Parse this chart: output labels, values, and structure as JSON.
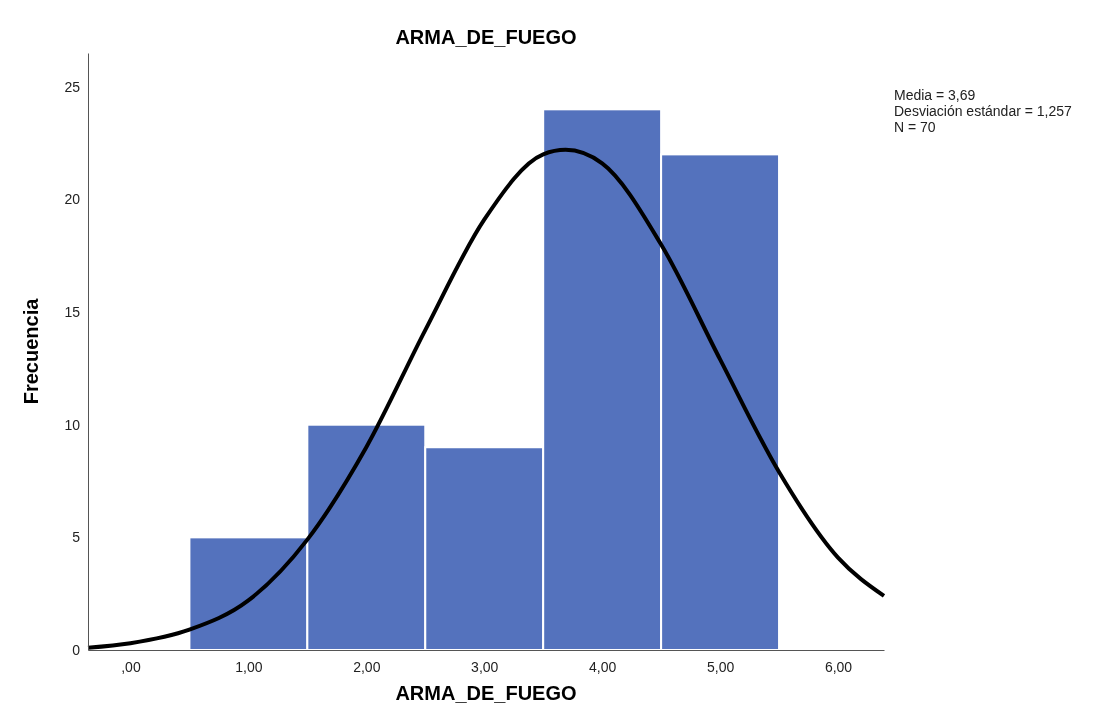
{
  "chart_data": {
    "type": "histogram",
    "title": "ARMA_DE_FUEGO",
    "xlabel": "ARMA_DE_FUEGO",
    "ylabel": "Frecuencia",
    "bins": [
      0.5,
      1.5,
      2.5,
      3.5,
      4.5,
      5.5
    ],
    "values": [
      5,
      10,
      9,
      24,
      22
    ],
    "color": "#5472bd",
    "xlim": [
      -0.36,
      6.39
    ],
    "xticks": [
      {
        "value": 0,
        "label": ",00"
      },
      {
        "value": 1,
        "label": "1,00"
      },
      {
        "value": 2,
        "label": "2,00"
      },
      {
        "value": 3,
        "label": "3,00"
      },
      {
        "value": 4,
        "label": "4,00"
      },
      {
        "value": 5,
        "label": "5,00"
      },
      {
        "value": 6,
        "label": "6,00"
      }
    ],
    "ylim": [
      0,
      26.5
    ],
    "yticks": [
      0,
      5,
      10,
      15,
      20,
      25
    ],
    "grid": false,
    "series": [
      {
        "type": "line",
        "color": "#000000",
        "x": [
          -0.36,
          0,
          0.5,
          1,
          1.5,
          2,
          2.5,
          3,
          3.5,
          3.69,
          4,
          4.5,
          5,
          5.5,
          6,
          6.39
        ],
        "values": [
          0.1,
          0.3,
          0.9,
          2.2,
          4.9,
          9,
          14.2,
          19.1,
          22,
          22.2,
          21.6,
          18,
          12.9,
          7.9,
          4.1,
          2.4
        ]
      }
    ],
    "annotations": [
      "Media = 3,69",
      "Desviación estándar = 1,257",
      "N = 70"
    ]
  }
}
